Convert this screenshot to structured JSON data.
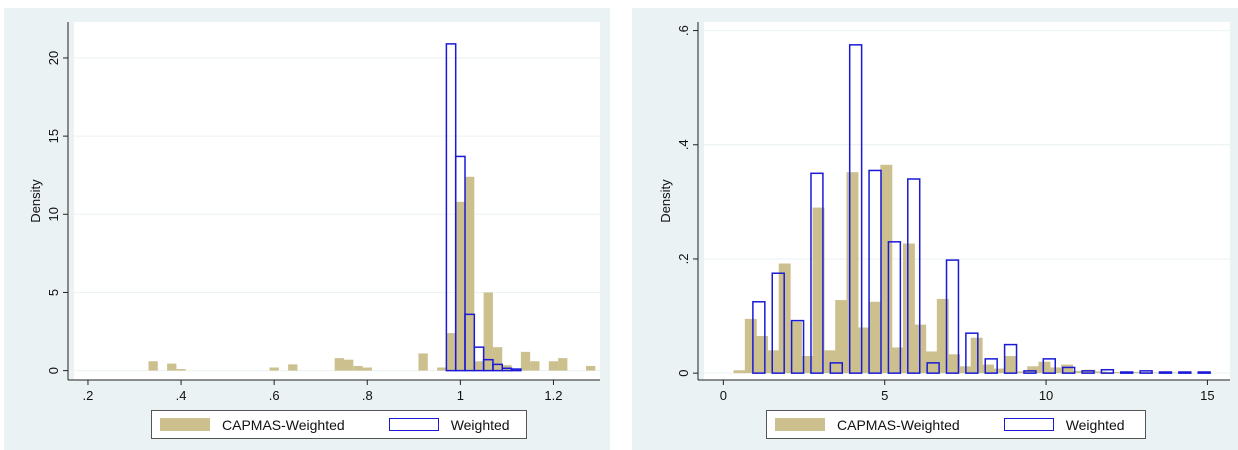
{
  "chart_data": [
    {
      "type": "bar",
      "ylabel": "Density",
      "xlabel": "",
      "xlim": [
        0.17,
        1.3
      ],
      "ylim": [
        -0.6,
        22.3
      ],
      "xticks": [
        ".2",
        ".4",
        ".6",
        ".8",
        "1",
        "1.2"
      ],
      "xtick_values": [
        0.2,
        0.4,
        0.6,
        0.8,
        1.0,
        1.2
      ],
      "yticks": [
        "0",
        "5",
        "10",
        "15",
        "20"
      ],
      "ytick_values": [
        0,
        5,
        10,
        15,
        20
      ],
      "grid": true,
      "legend_placement": "bottom",
      "bin_width": 0.02,
      "series": [
        {
          "name": "CAPMAS-Weighted",
          "style": "filled",
          "color": "#cdc08f",
          "x": [
            0.34,
            0.38,
            0.4,
            0.6,
            0.64,
            0.74,
            0.76,
            0.78,
            0.8,
            0.92,
            0.96,
            0.98,
            1.0,
            1.02,
            1.04,
            1.06,
            1.08,
            1.1,
            1.14,
            1.16,
            1.2,
            1.22,
            1.28
          ],
          "values": [
            0.6,
            0.45,
            0.1,
            0.2,
            0.4,
            0.8,
            0.7,
            0.3,
            0.2,
            1.1,
            0.2,
            2.4,
            10.8,
            12.4,
            0.6,
            5.0,
            1.5,
            0.35,
            1.2,
            0.6,
            0.6,
            0.8,
            0.3
          ]
        },
        {
          "name": "Weighted",
          "style": "outline",
          "color": "#1a1ad6",
          "x": [
            0.98,
            1.0,
            1.02,
            1.04,
            1.06,
            1.08,
            1.1,
            1.12
          ],
          "values": [
            20.9,
            13.7,
            3.6,
            1.5,
            0.7,
            0.4,
            0.15,
            0.1
          ]
        }
      ]
    },
    {
      "type": "bar",
      "ylabel": "Density",
      "xlabel": "",
      "xlim": [
        -0.6,
        15.7
      ],
      "ylim": [
        -0.012,
        0.615
      ],
      "xticks": [
        "0",
        "5",
        "10",
        "15"
      ],
      "xtick_values": [
        0,
        5,
        10,
        15
      ],
      "yticks": [
        "0",
        ".2",
        ".4",
        ".6"
      ],
      "ytick_values": [
        0,
        0.2,
        0.4,
        0.6
      ],
      "grid": true,
      "legend_placement": "bottom",
      "bin_width": 0.37,
      "series": [
        {
          "name": "CAPMAS-Weighted",
          "style": "filled",
          "color": "#cdc08f",
          "x": [
            0.5,
            0.85,
            1.2,
            1.55,
            1.9,
            2.25,
            2.6,
            2.95,
            3.3,
            3.65,
            4.0,
            4.35,
            4.7,
            5.05,
            5.4,
            5.75,
            6.1,
            6.45,
            6.8,
            7.15,
            7.5,
            7.85,
            8.2,
            8.55,
            8.9,
            9.25,
            9.6,
            9.95,
            10.3,
            10.65,
            11.0,
            11.35,
            11.7,
            12.05,
            12.4,
            12.75,
            13.1,
            13.45,
            13.8,
            14.15
          ],
          "values": [
            0.005,
            0.095,
            0.065,
            0.04,
            0.192,
            0.09,
            0.03,
            0.29,
            0.04,
            0.128,
            0.352,
            0.08,
            0.125,
            0.365,
            0.045,
            0.227,
            0.085,
            0.038,
            0.13,
            0.033,
            0.012,
            0.062,
            0.015,
            0.008,
            0.03,
            0.003,
            0.012,
            0.02,
            0.01,
            0.015,
            0.004,
            0.006,
            0.003,
            0.002,
            0.002,
            0.002,
            0.002,
            0.001,
            0.001,
            0.001
          ]
        },
        {
          "name": "Weighted",
          "style": "outline",
          "color": "#1a1ad6",
          "x": [
            1.1,
            1.7,
            2.3,
            2.9,
            3.5,
            4.1,
            4.7,
            5.3,
            5.9,
            6.5,
            7.1,
            7.7,
            8.3,
            8.9,
            9.5,
            10.1,
            10.7,
            11.3,
            11.9,
            12.5,
            13.1,
            13.7,
            14.3,
            14.9
          ],
          "values": [
            0.125,
            0.175,
            0.092,
            0.35,
            0.018,
            0.575,
            0.355,
            0.23,
            0.34,
            0.018,
            0.198,
            0.07,
            0.025,
            0.05,
            0.004,
            0.025,
            0.01,
            0.004,
            0.006,
            0.002,
            0.004,
            0.002,
            0.002,
            0.002
          ]
        }
      ]
    }
  ],
  "legend": {
    "filled_label": "CAPMAS-Weighted",
    "outline_label": "Weighted"
  }
}
